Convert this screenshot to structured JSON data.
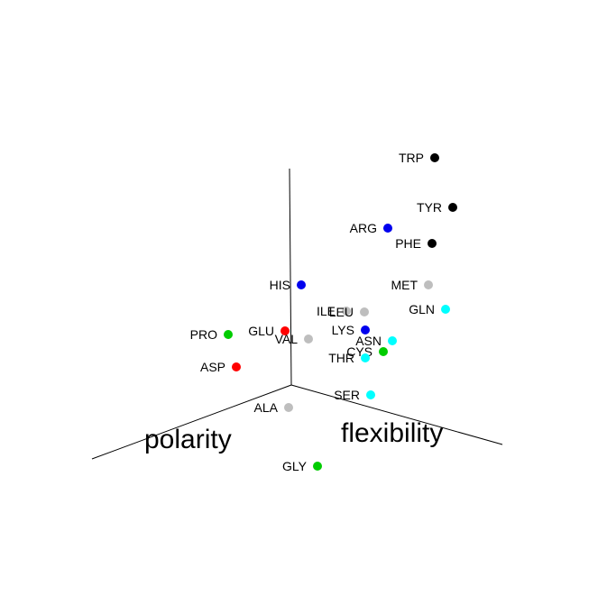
{
  "chart_data": {
    "type": "scatter",
    "projection": "3d",
    "title": "",
    "axes": {
      "polarity_label": "polarity",
      "flexibility_label": "flexibility",
      "vertical_label": ""
    },
    "colors": {
      "blue": "#0000ee",
      "cyan": "#00ffff",
      "green": "#00cc00",
      "red": "#ff0000",
      "gray": "#bebebe",
      "black": "#000000"
    },
    "points": [
      {
        "label": "TRP",
        "color": "black"
      },
      {
        "label": "TYR",
        "color": "black"
      },
      {
        "label": "ARG",
        "color": "blue"
      },
      {
        "label": "PHE",
        "color": "black"
      },
      {
        "label": "HIS",
        "color": "blue"
      },
      {
        "label": "MET",
        "color": "gray"
      },
      {
        "label": "GLN",
        "color": "cyan"
      },
      {
        "label": "ILE",
        "color": "gray"
      },
      {
        "label": "LEU",
        "color": "gray"
      },
      {
        "label": "PRO",
        "color": "green"
      },
      {
        "label": "GLU",
        "color": "red"
      },
      {
        "label": "VAL",
        "color": "gray"
      },
      {
        "label": "LYS",
        "color": "blue"
      },
      {
        "label": "ASN",
        "color": "cyan"
      },
      {
        "label": "CYS",
        "color": "green"
      },
      {
        "label": "THR",
        "color": "cyan"
      },
      {
        "label": "ASP",
        "color": "red"
      },
      {
        "label": "SER",
        "color": "cyan"
      },
      {
        "label": "ALA",
        "color": "gray"
      },
      {
        "label": "GLY",
        "color": "green"
      }
    ]
  }
}
